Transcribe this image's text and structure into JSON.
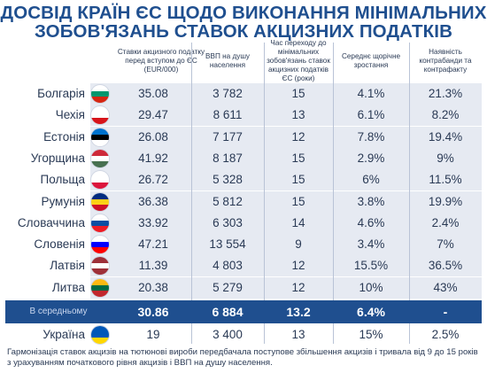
{
  "title": {
    "line1": "ДОСВІД КРАЇН ЄС ЩОДО ВИКОНАННЯ МІНІМАЛЬНИХ",
    "line2": "ЗОБОВ'ЯЗАНЬ СТАВОК АКЦИЗНИХ ПОДАТКІВ"
  },
  "headers": [
    "Ставки акцизного податку перед вступом до ЄС (EUR/000)",
    "ВВП на душу населення",
    "Час переходу до мінімальних зобов'язань ставок акцизних податків ЄС (роки)",
    "Середнє щорічне зростання",
    "Наявність контрабанди та контрафакту"
  ],
  "rows": [
    {
      "country": "Болгарія",
      "flag": [
        "#ffffff",
        "#00966e",
        "#d62612"
      ],
      "rate": "35.08",
      "gdp": "3 782",
      "years": "15",
      "growth": "4.1%",
      "contraband": "21.3%"
    },
    {
      "country": "Чехія",
      "flag": [
        "#ffffff",
        "#ffffff",
        "#d7141a"
      ],
      "rate": "29.47",
      "gdp": "8 611",
      "years": "13",
      "growth": "6.1%",
      "contraband": "8.2%"
    },
    {
      "country": "Естонія",
      "flag": [
        "#0072ce",
        "#000000",
        "#ffffff"
      ],
      "rate": "26.08",
      "gdp": "7 177",
      "years": "12",
      "growth": "7.8%",
      "contraband": "19.4%"
    },
    {
      "country": "Угорщина",
      "flag": [
        "#ce2939",
        "#ffffff",
        "#477050"
      ],
      "rate": "41.92",
      "gdp": "8 187",
      "years": "15",
      "growth": "2.9%",
      "contraband": "9%"
    },
    {
      "country": "Польща",
      "flag": [
        "#ffffff",
        "#ffffff",
        "#dc143c"
      ],
      "rate": "26.72",
      "gdp": "5 328",
      "years": "15",
      "growth": "6%",
      "contraband": "11.5%"
    },
    {
      "country": "Румунія",
      "flag": [
        "#002b7f",
        "#fcd116",
        "#ce1126"
      ],
      "rate": "36.38",
      "gdp": "5 812",
      "years": "15",
      "growth": "3.8%",
      "contraband": "19.9%"
    },
    {
      "country": "Словаччина",
      "flag": [
        "#ffffff",
        "#0b4ea2",
        "#ee1c25"
      ],
      "rate": "33.92",
      "gdp": "6 303",
      "years": "14",
      "growth": "4.6%",
      "contraband": "2.4%"
    },
    {
      "country": "Словенія",
      "flag": [
        "#ffffff",
        "#0000ff",
        "#ff0000"
      ],
      "rate": "47.21",
      "gdp": "13 554",
      "years": "9",
      "growth": "3.4%",
      "contraband": "7%"
    },
    {
      "country": "Латвія",
      "flag": [
        "#9e3039",
        "#ffffff",
        "#9e3039"
      ],
      "rate": "11.39",
      "gdp": "4 803",
      "years": "12",
      "growth": "15.5%",
      "contraband": "36.5%"
    },
    {
      "country": "Литва",
      "flag": [
        "#fdb913",
        "#006a44",
        "#c1272d"
      ],
      "rate": "20.38",
      "gdp": "5 279",
      "years": "12",
      "growth": "10%",
      "contraband": "43%"
    }
  ],
  "average": {
    "label": "В середньому",
    "rate": "30.86",
    "gdp": "6 884",
    "years": "13.2",
    "growth": "6.4%",
    "contraband": "-"
  },
  "ukraine": {
    "country": "Україна",
    "flag": [
      "#0057b7",
      "#0057b7",
      "#ffd700"
    ],
    "rate": "19",
    "gdp": "3 400",
    "years": "13",
    "growth": "15%",
    "contraband": "2.5%"
  },
  "footnote": "Гармонізація ставок акцизів на тютюнові вироби передбачала поступове збільшення акцизів і тривала від 9 до 15 років з урахуванням початкового рівня акцизів і ВВП на душу населення."
}
